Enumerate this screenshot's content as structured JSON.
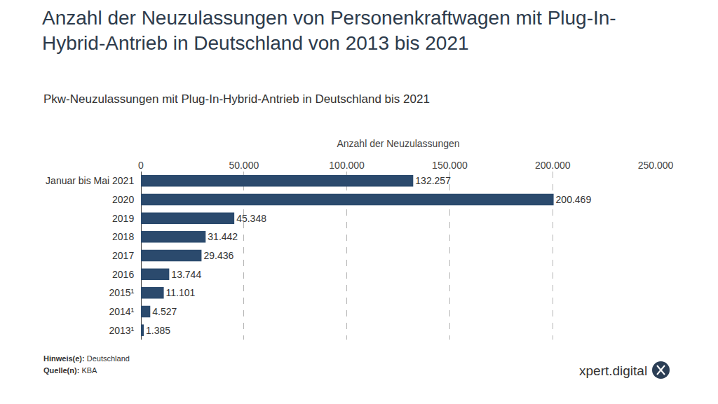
{
  "chart_data": {
    "type": "bar",
    "orientation": "horizontal",
    "title": "Anzahl der Neuzulassungen von Personenkraftwagen mit Plug-In-Hybrid-Antrieb in Deutschland von 2013 bis 2021",
    "subtitle": "Pkw-Neuzulassungen mit Plug-In-Hybrid-Antrieb in Deutschland bis 2021",
    "x_label": "Anzahl der Neuzulassungen",
    "categories": [
      "Januar bis Mai 2021",
      "2020",
      "2019",
      "2018",
      "2017",
      "2016",
      "2015¹",
      "2014¹",
      "2013¹"
    ],
    "values": [
      132257,
      200469,
      45348,
      31442,
      29436,
      13744,
      11101,
      4527,
      1385
    ],
    "value_labels": [
      "132.257",
      "200.469",
      "45.348",
      "31.442",
      "29.436",
      "13.744",
      "11.101",
      "4.527",
      "1.385"
    ],
    "color": "#2b4a6d",
    "xlim": [
      0,
      250000
    ],
    "xticks": [
      0,
      {
        "value": 50000,
        "label": "50.000"
      },
      {
        "value": 100000,
        "label": "100.000"
      },
      {
        "value": 150000,
        "label": "150.000"
      },
      {
        "value": 200000,
        "label": "200.000"
      },
      {
        "value": 250000,
        "label": "250.000"
      }
    ],
    "grid": true,
    "data_labels": true,
    "annotations": [
      "Hinweis(e): Deutschland",
      "Quelle(n): KBA"
    ],
    "brand": "xpert.digital"
  }
}
